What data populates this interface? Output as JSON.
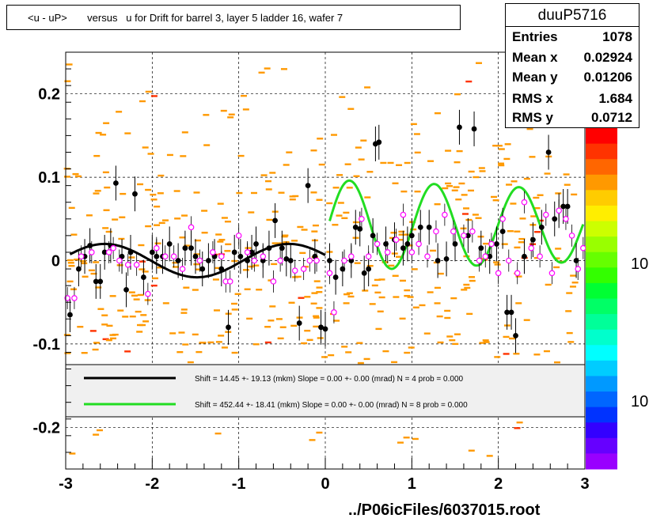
{
  "title": "<u - uP>       versus   u for Drift for barrel 3, layer 5 ladder 16, wafer 7",
  "stats": {
    "name": "duuP5716",
    "rows": [
      {
        "key": "Entries",
        "value": "1078"
      },
      {
        "key": "Mean x",
        "value": "0.02924"
      },
      {
        "key": "Mean y",
        "value": "0.01206"
      },
      {
        "key": "RMS x",
        "value": "1.684"
      },
      {
        "key": "RMS y",
        "value": "0.0712"
      }
    ]
  },
  "footer": "../P06icFiles/6037015.root",
  "palette_labels": [
    "10",
    "10"
  ],
  "legend": [
    {
      "color": "#000000",
      "text": "Shift =    14.45 +- 19.13 (mkm) Slope =     0.00 +- 0.00 (mrad)  N = 4 prob = 0.000"
    },
    {
      "color": "#22dd22",
      "text": "Shift =   452.44 +- 18.41 (mkm) Slope =     0.00 +- 0.00 (mrad)  N = 8 prob = 0.000"
    }
  ],
  "chart_data": {
    "type": "scatter",
    "xlim": [
      -3,
      3
    ],
    "ylim": [
      -0.25,
      0.25
    ],
    "x_ticks": [
      "-3",
      "-2",
      "-1",
      "0",
      "1",
      "2",
      "3"
    ],
    "y_ticks": [
      "0.2",
      "0.1",
      "0",
      "-0.1",
      "-0.2"
    ],
    "y_tick_values": [
      0.2,
      0.1,
      0,
      -0.1,
      -0.2
    ],
    "grid": true,
    "colors": {
      "histogram": "#ff9900",
      "mean_points": "#000000",
      "open_points": "#ff00ff",
      "fit1": "#000000",
      "fit2": "#22dd22"
    },
    "black_points": [
      [
        -2.95,
        -0.065
      ],
      [
        -2.85,
        -0.01
      ],
      [
        -2.78,
        0.005
      ],
      [
        -2.72,
        0.018
      ],
      [
        -2.65,
        -0.025
      ],
      [
        -2.6,
        -0.025
      ],
      [
        -2.55,
        0.01
      ],
      [
        -2.48,
        0.018
      ],
      [
        -2.42,
        0.093
      ],
      [
        -2.35,
        0.005
      ],
      [
        -2.3,
        -0.035
      ],
      [
        -2.25,
        0.01
      ],
      [
        -2.2,
        0.08
      ],
      [
        -2.1,
        -0.02
      ],
      [
        -2.0,
        0.01
      ],
      [
        -1.95,
        0.005
      ],
      [
        -1.88,
        0.005
      ],
      [
        -1.8,
        0.02
      ],
      [
        -1.7,
        0.0
      ],
      [
        -1.62,
        0.015
      ],
      [
        -1.55,
        0.015
      ],
      [
        -1.5,
        0.005
      ],
      [
        -1.42,
        -0.01
      ],
      [
        -1.35,
        0.0
      ],
      [
        -1.28,
        0.005
      ],
      [
        -1.2,
        -0.01
      ],
      [
        -1.12,
        -0.08
      ],
      [
        -1.05,
        0.01
      ],
      [
        -0.98,
        0.005
      ],
      [
        -0.9,
        0.0
      ],
      [
        -0.85,
        0.01
      ],
      [
        -0.8,
        0.02
      ],
      [
        -0.72,
        0.0
      ],
      [
        -0.65,
        0.015
      ],
      [
        -0.58,
        0.048
      ],
      [
        -0.5,
        0.015
      ],
      [
        -0.45,
        0.002
      ],
      [
        -0.4,
        0.0
      ],
      [
        -0.3,
        -0.075
      ],
      [
        -0.2,
        0.09
      ],
      [
        -0.12,
        0.005
      ],
      [
        -0.05,
        -0.08
      ],
      [
        0.0,
        -0.082
      ],
      [
        0.05,
        0.0
      ],
      [
        0.12,
        -0.02
      ],
      [
        0.2,
        -0.01
      ],
      [
        0.3,
        0.0
      ],
      [
        0.35,
        0.04
      ],
      [
        0.4,
        0.038
      ],
      [
        0.45,
        -0.015
      ],
      [
        0.5,
        -0.01
      ],
      [
        0.55,
        0.03
      ],
      [
        0.58,
        0.14
      ],
      [
        0.62,
        0.142
      ],
      [
        0.7,
        0.02
      ],
      [
        0.8,
        0.025
      ],
      [
        0.9,
        0.015
      ],
      [
        0.95,
        0.02
      ],
      [
        1.0,
        0.03
      ],
      [
        1.1,
        0.04
      ],
      [
        1.2,
        0.04
      ],
      [
        1.3,
        0.0
      ],
      [
        1.4,
        0.002
      ],
      [
        1.5,
        0.02
      ],
      [
        1.55,
        0.16
      ],
      [
        1.65,
        0.03
      ],
      [
        1.72,
        0.158
      ],
      [
        1.8,
        0.015
      ],
      [
        1.9,
        0.005
      ],
      [
        1.98,
        0.02
      ],
      [
        2.05,
        0.035
      ],
      [
        2.1,
        -0.062
      ],
      [
        2.15,
        -0.062
      ],
      [
        2.2,
        -0.09
      ],
      [
        2.3,
        0.005
      ],
      [
        2.4,
        0.025
      ],
      [
        2.5,
        0.04
      ],
      [
        2.58,
        0.13
      ],
      [
        2.65,
        0.05
      ],
      [
        2.7,
        0.06
      ],
      [
        2.75,
        0.065
      ],
      [
        2.8,
        0.065
      ],
      [
        2.9,
        0.0
      ]
    ],
    "open_points": [
      [
        -2.98,
        -0.045
      ],
      [
        -2.9,
        -0.045
      ],
      [
        -2.82,
        0.005
      ],
      [
        -2.7,
        0.01
      ],
      [
        -2.5,
        0.01
      ],
      [
        -2.45,
        0.015
      ],
      [
        -2.38,
        0.0
      ],
      [
        -2.28,
        -0.005
      ],
      [
        -2.18,
        -0.005
      ],
      [
        -2.05,
        -0.04
      ],
      [
        -1.95,
        0.015
      ],
      [
        -1.85,
        0.005
      ],
      [
        -1.75,
        0.005
      ],
      [
        -1.65,
        -0.01
      ],
      [
        -1.55,
        0.04
      ],
      [
        -1.45,
        0.0
      ],
      [
        -1.3,
        0.01
      ],
      [
        -1.2,
        0.005
      ],
      [
        -1.15,
        -0.025
      ],
      [
        -1.1,
        -0.025
      ],
      [
        -1.0,
        0.03
      ],
      [
        -0.9,
        0.01
      ],
      [
        -0.82,
        0.0
      ],
      [
        -0.72,
        0.005
      ],
      [
        -0.6,
        -0.025
      ],
      [
        -0.52,
        0.0
      ],
      [
        -0.35,
        -0.012
      ],
      [
        -0.25,
        -0.01
      ],
      [
        -0.18,
        0.0
      ],
      [
        -0.1,
        0.0
      ],
      [
        0.05,
        -0.015
      ],
      [
        0.1,
        -0.062
      ],
      [
        0.22,
        0.0
      ],
      [
        0.3,
        0.005
      ],
      [
        0.42,
        0.05
      ],
      [
        0.5,
        0.005
      ],
      [
        0.6,
        0.02
      ],
      [
        0.72,
        0.01
      ],
      [
        0.82,
        0.025
      ],
      [
        0.9,
        0.055
      ],
      [
        1.0,
        0.01
      ],
      [
        1.08,
        0.02
      ],
      [
        1.18,
        0.005
      ],
      [
        1.28,
        0.035
      ],
      [
        1.38,
        0.055
      ],
      [
        1.48,
        0.035
      ],
      [
        1.6,
        0.03
      ],
      [
        1.7,
        0.035
      ],
      [
        1.78,
        0.0
      ],
      [
        1.85,
        0.005
      ],
      [
        1.92,
        0.02
      ],
      [
        2.05,
        0.05
      ],
      [
        2.0,
        -0.015
      ],
      [
        2.12,
        0.0
      ],
      [
        2.22,
        -0.015
      ],
      [
        2.3,
        0.07
      ],
      [
        2.38,
        0.015
      ],
      [
        2.48,
        0.005
      ],
      [
        2.55,
        0.055
      ],
      [
        2.62,
        -0.015
      ],
      [
        2.7,
        0.06
      ],
      [
        2.78,
        0.05
      ],
      [
        2.85,
        0.03
      ],
      [
        2.92,
        -0.01
      ],
      [
        2.98,
        0.015
      ]
    ],
    "fit_black_range": [
      -2.95,
      0.0
    ],
    "fit_green_range": [
      0.05,
      2.98
    ]
  }
}
